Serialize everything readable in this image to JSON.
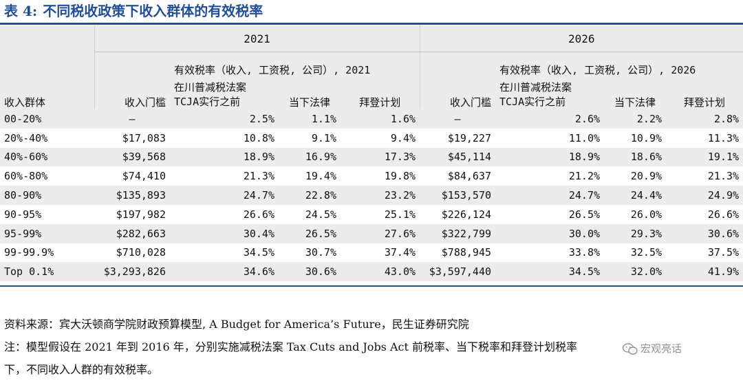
{
  "title": {
    "number": "表 4:",
    "text": "不同税收政策下收入群体的有效税率"
  },
  "years": [
    "2021",
    "2026"
  ],
  "headers": {
    "income_group": "收入群体",
    "threshold": "收入门槛",
    "effective_rate_title": "有效税率（收入, 工资税, 公司）, 2021",
    "effective_rate_title_2026": "有效税率（收入, 工资税, 公司）, 2026",
    "pre_tcja_line1": "在川普减税法案",
    "pre_tcja_line2": "TCJA实行之前",
    "current_law": "当下法律",
    "biden_plan": "拜登计划"
  },
  "rows": [
    {
      "group": "00-20%",
      "t2021": "–",
      "pre2021": "2.5%",
      "cur2021": "1.1%",
      "biden2021": "1.6%",
      "t2026": "–",
      "pre2026": "2.6%",
      "cur2026": "2.2%",
      "biden2026": "2.8%"
    },
    {
      "group": "20%-40%",
      "t2021": "$17,083",
      "pre2021": "10.8%",
      "cur2021": "9.1%",
      "biden2021": "9.4%",
      "t2026": "$19,227",
      "pre2026": "11.0%",
      "cur2026": "10.9%",
      "biden2026": "11.3%"
    },
    {
      "group": "40%-60%",
      "t2021": "$39,568",
      "pre2021": "18.9%",
      "cur2021": "16.9%",
      "biden2021": "17.3%",
      "t2026": "$45,114",
      "pre2026": "18.9%",
      "cur2026": "18.6%",
      "biden2026": "19.1%"
    },
    {
      "group": "60%-80%",
      "t2021": "$74,410",
      "pre2021": "21.3%",
      "cur2021": "19.4%",
      "biden2021": "19.8%",
      "t2026": "$84,637",
      "pre2026": "21.2%",
      "cur2026": "20.9%",
      "biden2026": "21.3%"
    },
    {
      "group": "80-90%",
      "t2021": "$135,893",
      "pre2021": "24.7%",
      "cur2021": "22.8%",
      "biden2021": "23.2%",
      "t2026": "$153,570",
      "pre2026": "24.7%",
      "cur2026": "24.4%",
      "biden2026": "24.9%"
    },
    {
      "group": "90-95%",
      "t2021": "$197,982",
      "pre2021": "26.6%",
      "cur2021": "24.5%",
      "biden2021": "25.1%",
      "t2026": "$226,124",
      "pre2026": "26.5%",
      "cur2026": "26.0%",
      "biden2026": "26.6%"
    },
    {
      "group": "95-99%",
      "t2021": "$282,663",
      "pre2021": "30.4%",
      "cur2021": "26.5%",
      "biden2021": "27.6%",
      "t2026": "$322,799",
      "pre2026": "30.0%",
      "cur2026": "29.3%",
      "biden2026": "30.6%"
    },
    {
      "group": "99-99.9%",
      "t2021": "$710,028",
      "pre2021": "34.5%",
      "cur2021": "30.7%",
      "biden2021": "37.4%",
      "t2026": "$788,945",
      "pre2026": "33.8%",
      "cur2026": "32.5%",
      "biden2026": "37.5%"
    },
    {
      "group": "Top 0.1%",
      "t2021": "$3,293,826",
      "pre2021": "34.6%",
      "cur2021": "30.6%",
      "biden2021": "43.0%",
      "t2026": "$3,597,440",
      "pre2026": "34.5%",
      "cur2026": "32.0%",
      "biden2026": "41.9%"
    }
  ],
  "notes": {
    "source": "资料来源：宾大沃顿商学院财政预算模型, A Budget for America’s Future，民生证券研究院",
    "note_line1": "注：模型假设在 2021 年到 2016 年，分别实施减税法案 Tax Cuts and Jobs Act 前税率、当下税率和拜登计划税率",
    "note_line2": "下，不同收入人群的有效税率。"
  },
  "watermark": {
    "text": "宏观亮话"
  },
  "colors": {
    "title": "#1f4f9a",
    "rule": "#1f4f9a",
    "shade": "#ececec"
  }
}
